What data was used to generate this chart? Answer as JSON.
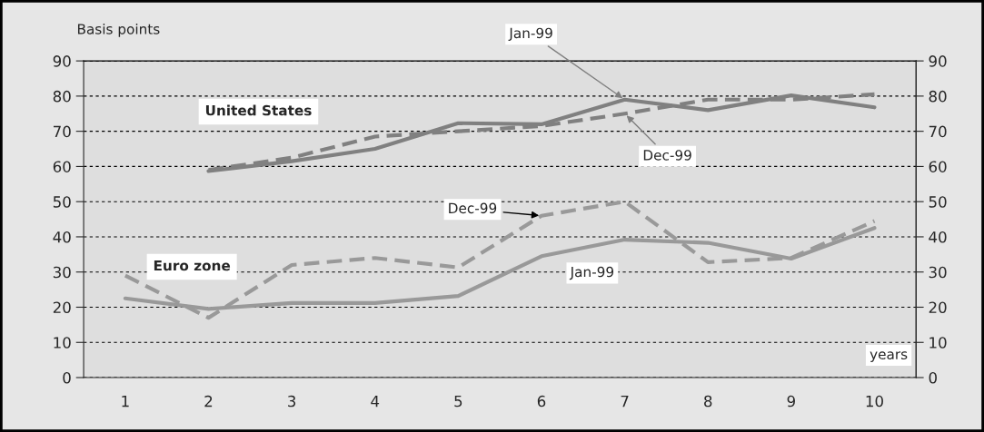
{
  "chart_data": {
    "type": "line",
    "ylabel": "Basis points",
    "xlabel": "years",
    "categories": [
      "1",
      "2",
      "3",
      "4",
      "5",
      "6",
      "7",
      "8",
      "9",
      "10"
    ],
    "series": [
      {
        "color": "#808080",
        "line_style": "solid",
        "values": [
          null,
          58.7,
          61.5,
          65,
          72.3,
          72,
          79,
          76,
          80.2,
          76.8
        ]
      },
      {
        "color": "#808080",
        "line_style": "dashed",
        "values": [
          null,
          59,
          62.5,
          68.5,
          70,
          71.5,
          75,
          79,
          79,
          80.5
        ]
      },
      {
        "color": "#999999",
        "line_style": "solid",
        "values": [
          22.5,
          19.5,
          21.2,
          21.2,
          23.2,
          34.5,
          39.2,
          38.3,
          33.8,
          42.5
        ]
      },
      {
        "color": "#999999",
        "line_style": "dashed",
        "values": [
          29,
          17,
          32,
          34,
          31.3,
          46,
          50,
          32.8,
          34,
          44.5
        ]
      }
    ],
    "ylim": [
      0,
      90
    ],
    "yticks": [
      0,
      10,
      20,
      30,
      40,
      50,
      60,
      70,
      80,
      90
    ],
    "y2lim": [
      0,
      90
    ],
    "y2ticks": [
      0,
      10,
      20,
      30,
      40,
      50,
      60,
      70,
      80,
      90
    ],
    "grid": "y",
    "legend": false,
    "marker": "none",
    "annotations": [
      "United States",
      "Euro zone",
      {
        "text": "Jan-99",
        "x": "7",
        "y": 79
      },
      {
        "text": "Dec-99",
        "x": "7",
        "y": 75
      },
      {
        "text": "Dec-99",
        "x": "6",
        "y": 46
      },
      "Jan-99"
    ]
  }
}
